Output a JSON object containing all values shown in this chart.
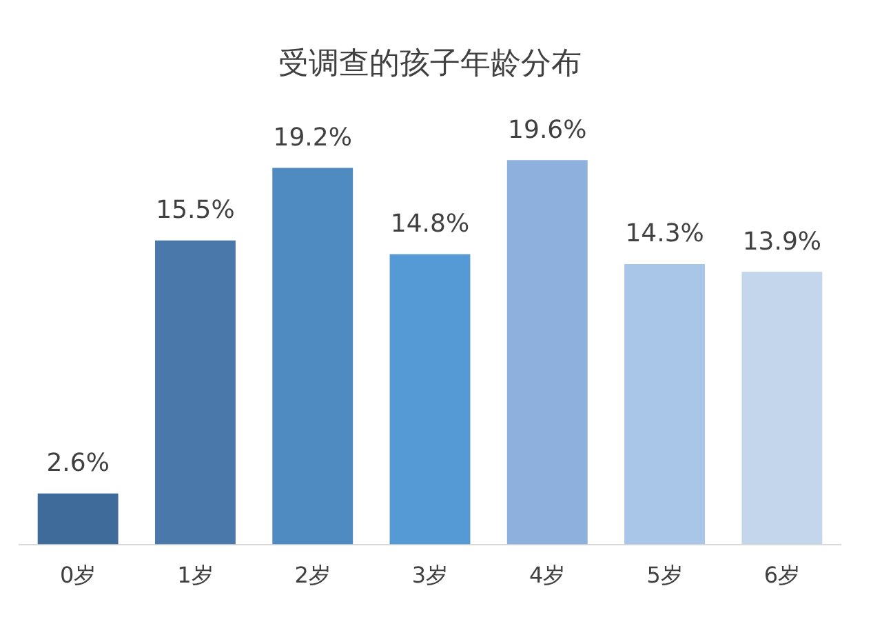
{
  "chart_data": {
    "type": "bar",
    "title": "受调查的孩子年龄分布",
    "categories": [
      "0岁",
      "1岁",
      "2岁",
      "3岁",
      "4岁",
      "5岁",
      "6岁"
    ],
    "values": [
      2.6,
      15.5,
      19.2,
      14.8,
      19.6,
      14.3,
      13.9
    ],
    "value_labels": [
      "2.6%",
      "15.5%",
      "19.2%",
      "14.8%",
      "19.6%",
      "14.3%",
      "13.9%"
    ],
    "colors": [
      "#3f6b9a",
      "#4b78ab",
      "#4f8bc1",
      "#5599d5",
      "#8db0dc",
      "#a9c5e7",
      "#c4d6ec"
    ],
    "grid": false,
    "legend": false
  }
}
